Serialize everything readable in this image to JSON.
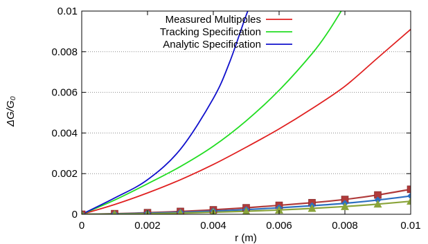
{
  "chart_data": {
    "type": "line",
    "xlabel": "r (m)",
    "ylabel": "ΔG/G₀",
    "xlim": [
      0,
      0.01
    ],
    "ylim": [
      0,
      0.01
    ],
    "x_ticks": [
      "0",
      "0.002",
      "0.004",
      "0.006",
      "0.008",
      "0.01"
    ],
    "y_ticks": [
      "0",
      "0.002",
      "0.004",
      "0.006",
      "0.008",
      "0.01"
    ],
    "grid": "horizontal dotted lines",
    "legend_position": "top-center",
    "legend": [
      {
        "name": "Measured Multipoles",
        "color": "#e02020"
      },
      {
        "name": "Tracking Specification",
        "color": "#22dd22"
      },
      {
        "name": "Analytic Specification",
        "color": "#1010cc"
      }
    ],
    "curves": [
      {
        "name": "Measured Multipoles",
        "color": "#e02020",
        "x": [
          0,
          0.001,
          0.002,
          0.003,
          0.004,
          0.005,
          0.006,
          0.007,
          0.008,
          0.009,
          0.01
        ],
        "y": [
          0,
          0.00048,
          0.00105,
          0.0017,
          0.00245,
          0.0033,
          0.0042,
          0.0052,
          0.0063,
          0.0077,
          0.0091
        ]
      },
      {
        "name": "Tracking Specification",
        "color": "#22dd22",
        "x": [
          0,
          0.001,
          0.002,
          0.003,
          0.004,
          0.005,
          0.006,
          0.007,
          0.0075,
          0.008
        ],
        "y": [
          0,
          0.0007,
          0.0015,
          0.00235,
          0.00335,
          0.0046,
          0.0061,
          0.0079,
          0.009,
          0.0103
        ]
      },
      {
        "name": "Analytic Specification",
        "color": "#1010cc",
        "x": [
          0,
          0.001,
          0.002,
          0.003,
          0.004,
          0.0045,
          0.005,
          0.0052
        ],
        "y": [
          0,
          0.0008,
          0.0017,
          0.0032,
          0.0057,
          0.0075,
          0.0098,
          0.0105
        ]
      }
    ],
    "marker_series": [
      {
        "color": "#b03a3a",
        "marker": "square",
        "x": [
          0,
          0.001,
          0.002,
          0.003,
          0.004,
          0.005,
          0.006,
          0.007,
          0.008,
          0.009,
          0.01
        ],
        "y": [
          0,
          3e-05,
          8e-05,
          0.00014,
          0.00022,
          0.00032,
          0.00044,
          0.00057,
          0.00073,
          0.00095,
          0.00123
        ]
      },
      {
        "color": "#2c6fc0",
        "marker": "diamond",
        "x": [
          0,
          0.001,
          0.002,
          0.003,
          0.004,
          0.005,
          0.006,
          0.007,
          0.008,
          0.009,
          0.01
        ],
        "y": [
          0,
          2e-05,
          6e-05,
          0.0001,
          0.00016,
          0.00023,
          0.00032,
          0.00042,
          0.00054,
          0.0007,
          0.0009
        ]
      },
      {
        "color": "#8aa43a",
        "marker": "triangle",
        "x": [
          0,
          0.001,
          0.002,
          0.003,
          0.004,
          0.005,
          0.006,
          0.007,
          0.008,
          0.009,
          0.01
        ],
        "y": [
          0,
          1e-05,
          3e-05,
          6e-05,
          0.0001,
          0.00015,
          0.00021,
          0.00029,
          0.00038,
          0.0005,
          0.00064
        ]
      }
    ]
  }
}
